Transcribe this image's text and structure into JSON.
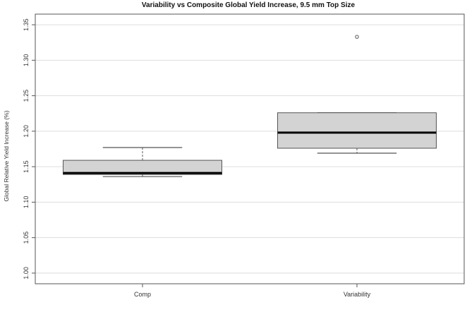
{
  "chart_data": {
    "type": "box",
    "title": "Variability vs Composite Global Yield Increase, 9.5 mm Top Size",
    "xlabel": "",
    "ylabel": "Global Relative Yield Increase (%)",
    "ylim": [
      0.985,
      1.365
    ],
    "y_ticks": [
      "1.00",
      "1.05",
      "1.10",
      "1.15",
      "1.20",
      "1.25",
      "1.30",
      "1.35"
    ],
    "grid": "horizontal",
    "categories": [
      "Comp",
      "Variability"
    ],
    "boxes": [
      {
        "category": "Comp",
        "whisker_low": 1.136,
        "q1": 1.139,
        "median": 1.141,
        "q3": 1.159,
        "whisker_high": 1.177,
        "outliers": []
      },
      {
        "category": "Variability",
        "whisker_low": 1.169,
        "q1": 1.176,
        "median": 1.198,
        "q3": 1.226,
        "whisker_high": 1.226,
        "outliers": [
          1.333
        ]
      }
    ],
    "colors": {
      "box_fill": "#d3d3d3",
      "box_stroke": "#555555",
      "median": "#000000",
      "grid": "#dddddd",
      "frame": "#555555"
    }
  }
}
